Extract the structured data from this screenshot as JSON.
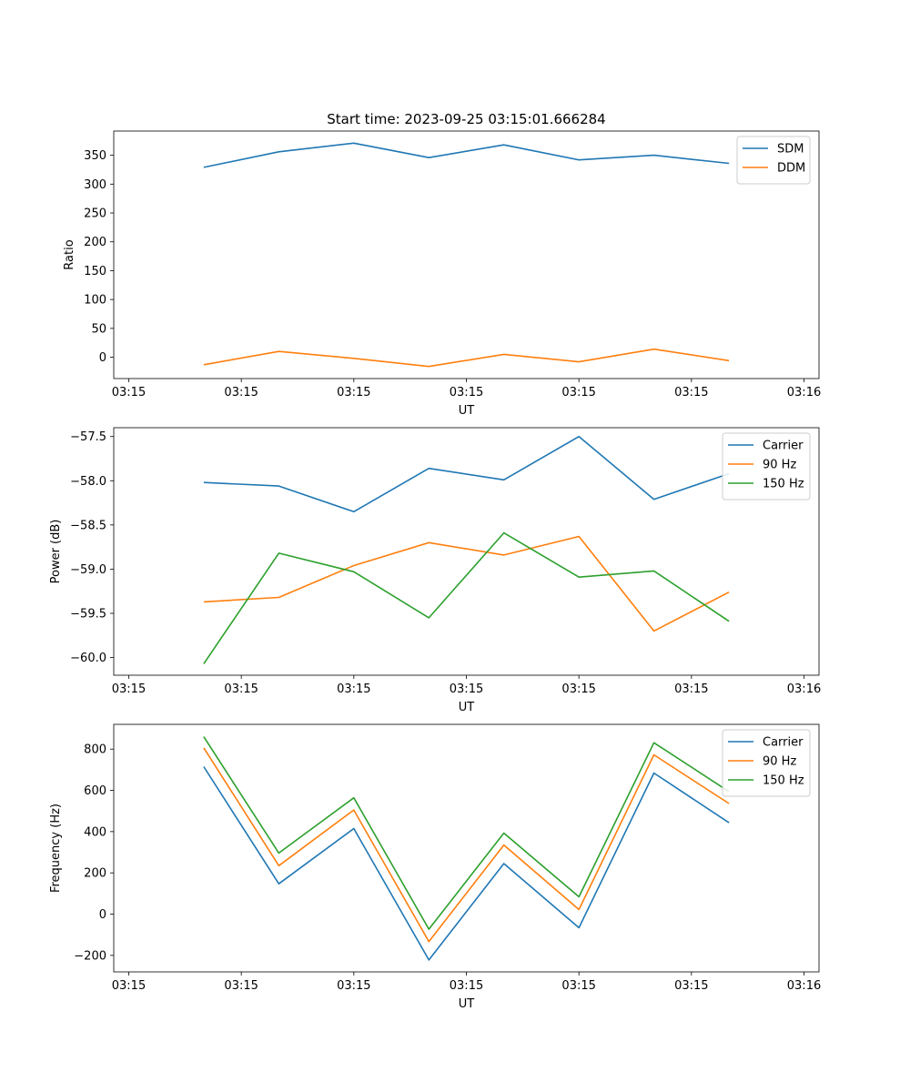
{
  "chart_data": [
    {
      "type": "line",
      "title": "Start time: 2023-09-25 03:15:01.666284",
      "xlabel": "UT",
      "ylabel": "Ratio",
      "x_tick_labels": [
        "03:15",
        "03:15",
        "03:15",
        "03:15",
        "03:15",
        "03:15",
        "03:16"
      ],
      "xlim": [
        -0.2,
        9.2
      ],
      "ylim": [
        -37,
        392
      ],
      "yticks": [
        0,
        50,
        100,
        150,
        200,
        250,
        300,
        350
      ],
      "x": [
        1,
        2,
        3,
        4,
        5,
        6,
        7,
        8
      ],
      "legend_position": "top-right",
      "series": [
        {
          "name": "SDM",
          "color": "#1f77b4",
          "values": [
            329,
            356,
            371,
            346,
            368,
            342,
            350,
            336
          ]
        },
        {
          "name": "DDM",
          "color": "#ff7f0e",
          "values": [
            -13,
            10,
            -2,
            -16,
            5,
            -8,
            14,
            -6
          ]
        }
      ]
    },
    {
      "type": "line",
      "title": "",
      "xlabel": "UT",
      "ylabel": "Power (dB)",
      "x_tick_labels": [
        "03:15",
        "03:15",
        "03:15",
        "03:15",
        "03:15",
        "03:15",
        "03:16"
      ],
      "xlim": [
        -0.2,
        9.2
      ],
      "ylim": [
        -60.2,
        -57.4
      ],
      "yticks": [
        -60.0,
        -59.5,
        -59.0,
        -58.5,
        -58.0,
        -57.5
      ],
      "x": [
        1,
        2,
        3,
        4,
        5,
        6,
        7,
        8
      ],
      "legend_position": "top-right",
      "series": [
        {
          "name": "Carrier",
          "color": "#1f77b4",
          "values": [
            -58.02,
            -58.06,
            -58.35,
            -57.86,
            -57.99,
            -57.5,
            -58.21,
            -57.92
          ]
        },
        {
          "name": "90 Hz",
          "color": "#ff7f0e",
          "values": [
            -59.37,
            -59.32,
            -58.96,
            -58.7,
            -58.84,
            -58.63,
            -59.7,
            -59.26
          ]
        },
        {
          "name": "150 Hz",
          "color": "#2ca02c",
          "values": [
            -60.07,
            -58.82,
            -59.03,
            -59.55,
            -58.59,
            -59.09,
            -59.02,
            -59.59
          ]
        }
      ]
    },
    {
      "type": "line",
      "title": "",
      "xlabel": "UT",
      "ylabel": "Frequency (Hz)",
      "x_tick_labels": [
        "03:15",
        "03:15",
        "03:15",
        "03:15",
        "03:15",
        "03:15",
        "03:16"
      ],
      "xlim": [
        -0.2,
        9.2
      ],
      "ylim": [
        -280,
        920
      ],
      "yticks": [
        -200,
        0,
        200,
        400,
        600,
        800
      ],
      "x": [
        1,
        2,
        3,
        4,
        5,
        6,
        7,
        8
      ],
      "legend_position": "top-right",
      "series": [
        {
          "name": "Carrier",
          "color": "#1f77b4",
          "values": [
            715,
            147,
            415,
            -222,
            245,
            -66,
            684,
            443
          ]
        },
        {
          "name": "90 Hz",
          "color": "#ff7f0e",
          "values": [
            806,
            235,
            505,
            -133,
            335,
            22,
            772,
            536
          ]
        },
        {
          "name": "150 Hz",
          "color": "#2ca02c",
          "values": [
            860,
            296,
            564,
            -73,
            393,
            84,
            831,
            594
          ]
        }
      ]
    }
  ]
}
